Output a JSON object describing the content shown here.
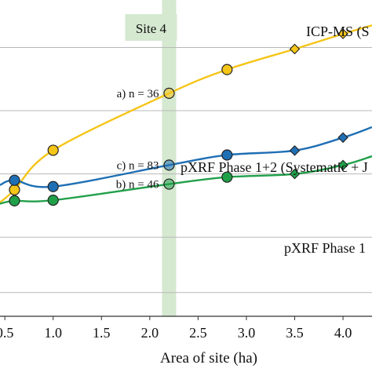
{
  "chart_data": {
    "type": "scatter",
    "xlabel": "Area of site (ha)",
    "ylabel": "",
    "xlim": [
      0.45,
      4.3
    ],
    "ylim": [
      0,
      1
    ],
    "x_ticks": [
      {
        "v": 0.5,
        "label": "0.5"
      },
      {
        "v": 1.0,
        "label": "1.0"
      },
      {
        "v": 1.5,
        "label": "1.5"
      },
      {
        "v": 2.0,
        "label": "2.0"
      },
      {
        "v": 2.5,
        "label": "2.5"
      },
      {
        "v": 3.0,
        "label": "3.0"
      },
      {
        "v": 3.5,
        "label": "3.5"
      },
      {
        "v": 4.0,
        "label": "4.0"
      }
    ],
    "y_gridlines": [
      0.075,
      0.25,
      0.45,
      0.65,
      0.85
    ],
    "grid": "horizontal",
    "highlight": {
      "x": 2.2,
      "label": "Site 4",
      "color": "#d5e8d0"
    },
    "series": [
      {
        "name": "ICP-MS (S",
        "color": "#f5c518",
        "line_color": "#f5c518",
        "circles": [
          [
            0.6,
            0.4
          ],
          [
            1.0,
            0.525
          ],
          [
            2.2,
            0.705
          ],
          [
            2.8,
            0.78
          ]
        ],
        "diamonds": [
          [
            3.5,
            0.845
          ],
          [
            4.0,
            0.893
          ]
        ],
        "curve_start": [
          0.45,
          0.36
        ],
        "curve_end": [
          4.3,
          0.92
        ]
      },
      {
        "name": "pXRF Phase 1+2 (Systematic + J",
        "color": "#1f6fb4",
        "line_color": "#1f6fb4",
        "circles": [
          [
            0.6,
            0.43
          ],
          [
            1.0,
            0.41
          ],
          [
            2.2,
            0.478
          ],
          [
            2.8,
            0.51
          ]
        ],
        "diamonds": [
          [
            3.5,
            0.524
          ],
          [
            4.0,
            0.565
          ]
        ],
        "curve_start": [
          0.45,
          0.415
        ],
        "curve_end": [
          4.3,
          0.598
        ]
      },
      {
        "name": "pXRF Phase 1",
        "color": "#21a04a",
        "line_color": "#21a04a",
        "circles": [
          [
            0.6,
            0.365
          ],
          [
            1.0,
            0.367
          ],
          [
            2.2,
            0.418
          ],
          [
            2.8,
            0.44
          ]
        ],
        "diamonds": [
          [
            3.5,
            0.45
          ],
          [
            4.0,
            0.478
          ]
        ],
        "curve_start": [
          0.45,
          0.356
        ],
        "curve_end": [
          4.3,
          0.506
        ]
      }
    ],
    "annotations": [
      {
        "text": "a) n = 36",
        "x": 2.2,
        "y": 0.705
      },
      {
        "text": "c) n = 83",
        "x": 2.2,
        "y": 0.478
      },
      {
        "text": "b) n = 46",
        "x": 2.2,
        "y": 0.418
      }
    ]
  }
}
